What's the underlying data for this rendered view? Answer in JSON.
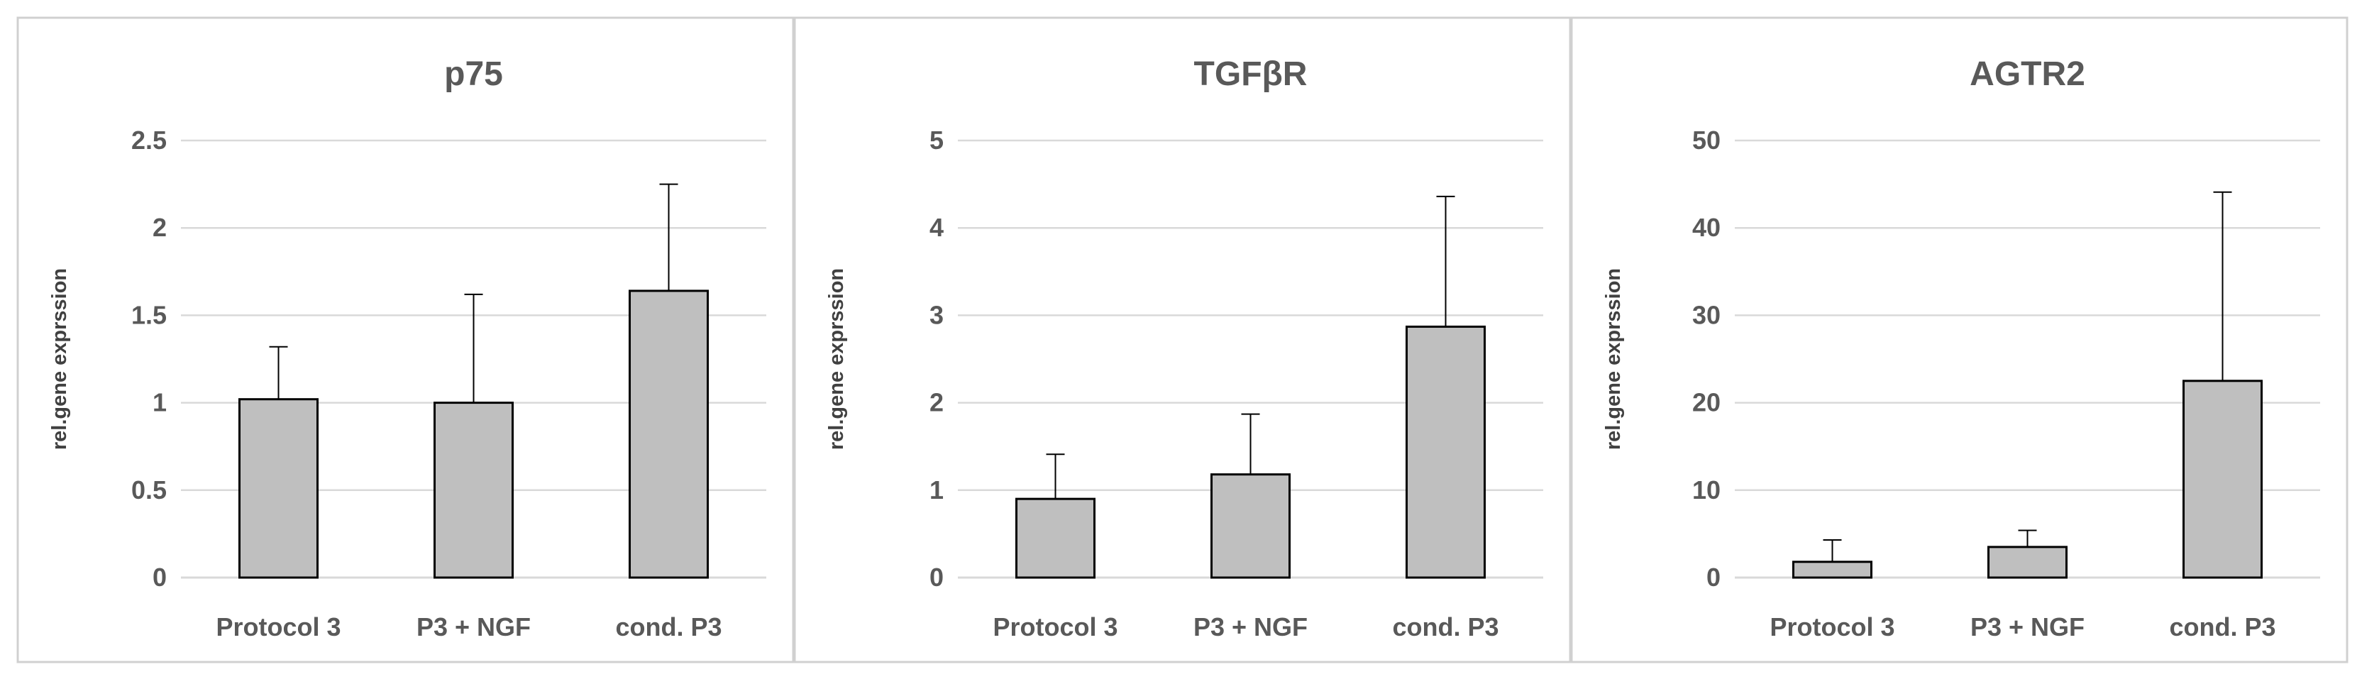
{
  "chart_data": [
    {
      "type": "bar",
      "title": "p75",
      "xlabel": "",
      "ylabel": "rel.gene exprssion",
      "categories": [
        "Protocol 3",
        "P3 + NGF",
        "cond. P3"
      ],
      "values": [
        1.02,
        1.0,
        1.64
      ],
      "errors": [
        0.3,
        0.62,
        0.61
      ],
      "ylim": [
        0,
        2.5
      ],
      "yticks": [
        "0",
        "0.5",
        "1",
        "1.5",
        "2",
        "2.5"
      ],
      "grid": true
    },
    {
      "type": "bar",
      "title": "TGFβR",
      "xlabel": "",
      "ylabel": "rel.gene exprssion",
      "categories": [
        "Protocol 3",
        "P3 + NGF",
        "cond. P3"
      ],
      "values": [
        0.9,
        1.18,
        2.87
      ],
      "errors": [
        0.51,
        0.69,
        1.49
      ],
      "ylim": [
        0,
        5
      ],
      "yticks": [
        "0",
        "1",
        "2",
        "3",
        "4",
        "5"
      ],
      "grid": true
    },
    {
      "type": "bar",
      "title": "AGTR2",
      "xlabel": "",
      "ylabel": "rel.gene exprssion",
      "categories": [
        "Protocol 3",
        "P3 + NGF",
        "cond. P3"
      ],
      "values": [
        1.8,
        3.5,
        22.5
      ],
      "errors": [
        2.5,
        1.9,
        21.6
      ],
      "ylim": [
        0,
        50
      ],
      "yticks": [
        "0",
        "10",
        "20",
        "30",
        "40",
        "50"
      ],
      "grid": true
    }
  ],
  "colors": {
    "bar_fill": "#bfbfbf",
    "bar_stroke": "#000000",
    "grid": "#d9d9d9",
    "panel_border": "#d0d0d0",
    "text": "#595959"
  }
}
